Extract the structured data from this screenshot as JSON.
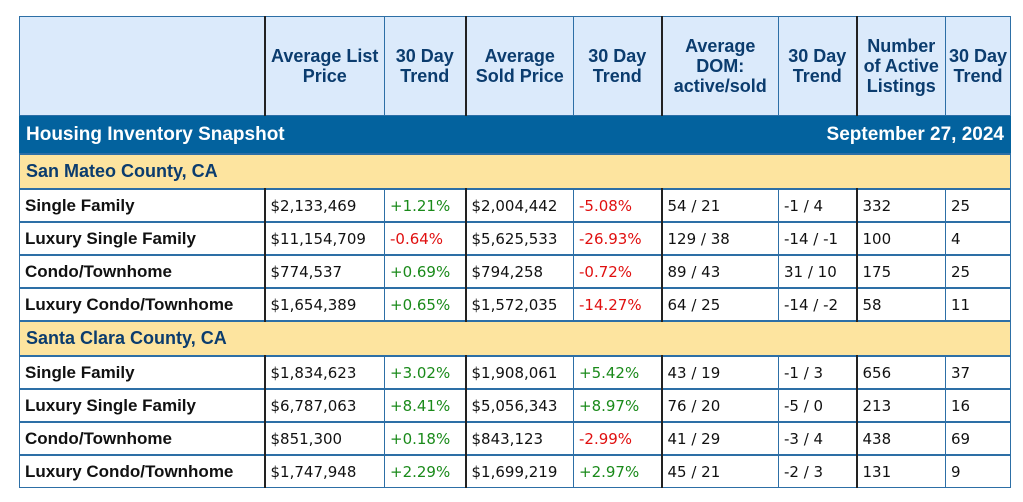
{
  "title": "Housing Inventory Snapshot",
  "date": "September 27, 2024",
  "columns": [
    "",
    "Average List Price",
    "30 Day Trend",
    "Average Sold Price",
    "30 Day Trend",
    "Average DOM: active/sold",
    "30 Day Trend",
    "Number of Active Listings",
    "30 Day Trend"
  ],
  "colors": {
    "header_bg": "#03629e",
    "col_header_bg": "#dbeafb",
    "county_bg": "#fde49f",
    "positive": "#1a8a1a",
    "negative": "#e01010"
  },
  "sections": [
    {
      "county": "San Mateo County, CA",
      "rows": [
        {
          "type": "Single Family",
          "list_price": "$2,133,469",
          "list_trend": "+1.21%",
          "sold_price": "$2,004,442",
          "sold_trend": "-5.08%",
          "dom": "54 / 21",
          "dom_trend": "-1 / 4",
          "listings": "332",
          "listings_trend": "25"
        },
        {
          "type": "Luxury Single Family",
          "list_price": "$11,154,709",
          "list_trend": "-0.64%",
          "sold_price": "$5,625,533",
          "sold_trend": "-26.93%",
          "dom": "129 / 38",
          "dom_trend": "-14 / -1",
          "listings": "100",
          "listings_trend": "4"
        },
        {
          "type": "Condo/Townhome",
          "list_price": "$774,537",
          "list_trend": "+0.69%",
          "sold_price": "$794,258",
          "sold_trend": "-0.72%",
          "dom": "89 / 43",
          "dom_trend": "31 / 10",
          "listings": "175",
          "listings_trend": "25"
        },
        {
          "type": "Luxury Condo/Townhome",
          "list_price": "$1,654,389",
          "list_trend": "+0.65%",
          "sold_price": "$1,572,035",
          "sold_trend": "-14.27%",
          "dom": "64 / 25",
          "dom_trend": "-14 / -2",
          "listings": "58",
          "listings_trend": "11"
        }
      ]
    },
    {
      "county": "Santa Clara County, CA",
      "rows": [
        {
          "type": "Single Family",
          "list_price": "$1,834,623",
          "list_trend": "+3.02%",
          "sold_price": "$1,908,061",
          "sold_trend": "+5.42%",
          "dom": "43 / 19",
          "dom_trend": "-1 / 3",
          "listings": "656",
          "listings_trend": "37"
        },
        {
          "type": "Luxury Single Family",
          "list_price": "$6,787,063",
          "list_trend": "+8.41%",
          "sold_price": "$5,056,343",
          "sold_trend": "+8.97%",
          "dom": "76 / 20",
          "dom_trend": "-5 / 0",
          "listings": "213",
          "listings_trend": "16"
        },
        {
          "type": "Condo/Townhome",
          "list_price": "$851,300",
          "list_trend": "+0.18%",
          "sold_price": "$843,123",
          "sold_trend": "-2.99%",
          "dom": "41 / 29",
          "dom_trend": "-3 / 4",
          "listings": "438",
          "listings_trend": "69"
        },
        {
          "type": "Luxury Condo/Townhome",
          "list_price": "$1,747,948",
          "list_trend": "+2.29%",
          "sold_price": "$1,699,219",
          "sold_trend": "+2.97%",
          "dom": "45 / 21",
          "dom_trend": "-2 / 3",
          "listings": "131",
          "listings_trend": "9"
        }
      ]
    }
  ]
}
